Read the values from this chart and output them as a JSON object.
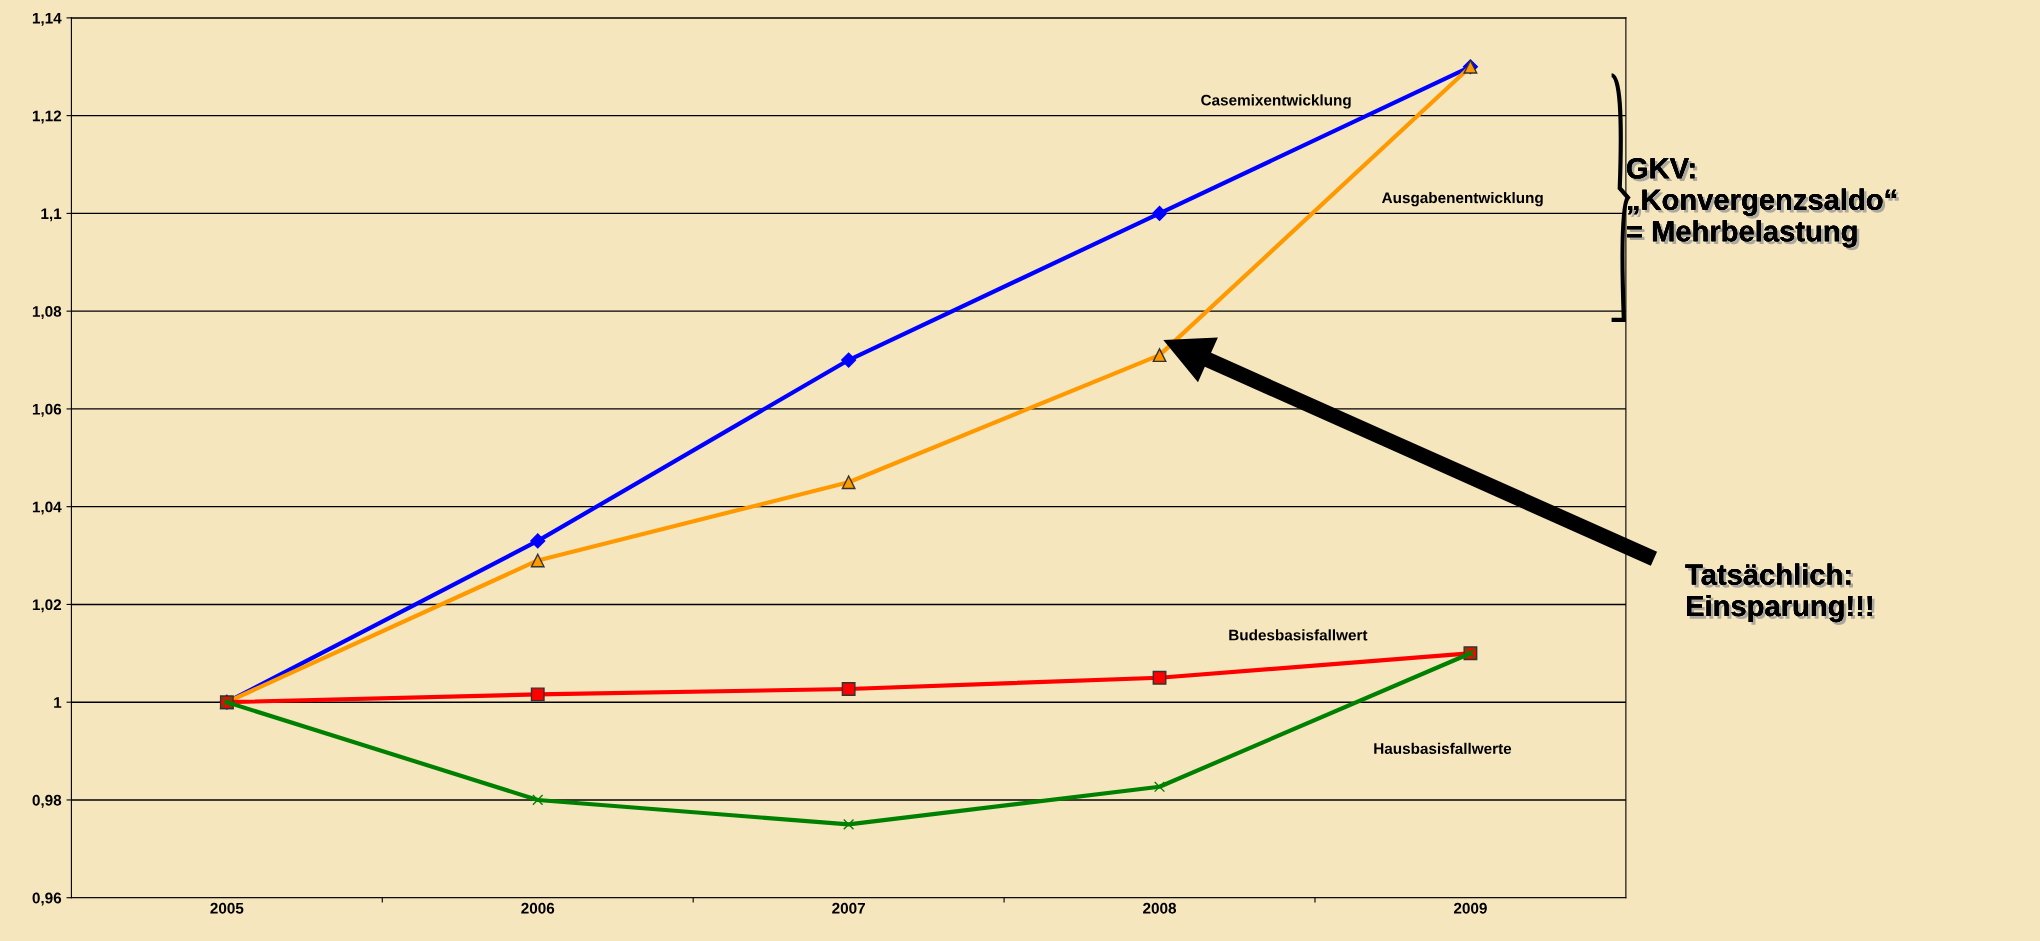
{
  "chart_data": {
    "type": "line",
    "categories": [
      "2005",
      "2006",
      "2007",
      "2008",
      "2009"
    ],
    "series": [
      {
        "name": "Casemixentwicklung",
        "color": "#0000ff",
        "marker": "diamond",
        "values": [
          1.0,
          1.033,
          1.07,
          1.1,
          1.13
        ]
      },
      {
        "name": "Ausgabenentwicklung",
        "color": "#ff9900",
        "marker": "triangle",
        "values": [
          1.0,
          1.029,
          1.045,
          1.071,
          1.13
        ]
      },
      {
        "name": "Budesbasisfallwert",
        "color": "#ff0000",
        "marker": "square",
        "values": [
          1.0,
          1.0016,
          1.0027,
          1.005,
          1.01
        ]
      },
      {
        "name": "Hausbasisfallwerte",
        "color": "#008000",
        "marker": "cross",
        "values": [
          1.0,
          0.98,
          0.975,
          0.9827,
          1.01
        ]
      }
    ],
    "ylim": [
      0.96,
      1.14
    ],
    "yticks": [
      {
        "value": 0.96,
        "label": "0,96"
      },
      {
        "value": 0.98,
        "label": "0,98"
      },
      {
        "value": 1.0,
        "label": "1"
      },
      {
        "value": 1.02,
        "label": "1,02"
      },
      {
        "value": 1.04,
        "label": "1,04"
      },
      {
        "value": 1.06,
        "label": "1,06"
      },
      {
        "value": 1.08,
        "label": "1,08"
      },
      {
        "value": 1.1,
        "label": "1,1"
      },
      {
        "value": 1.12,
        "label": "1,12"
      },
      {
        "value": 1.14,
        "label": "1,14"
      }
    ],
    "grid": "y",
    "legend": false,
    "annotations": [
      "GKV:\n„Konvergenzsaldo“\n= Mehrbelastung",
      "Tatsächlich:\nEinsparung!!!"
    ]
  }
}
